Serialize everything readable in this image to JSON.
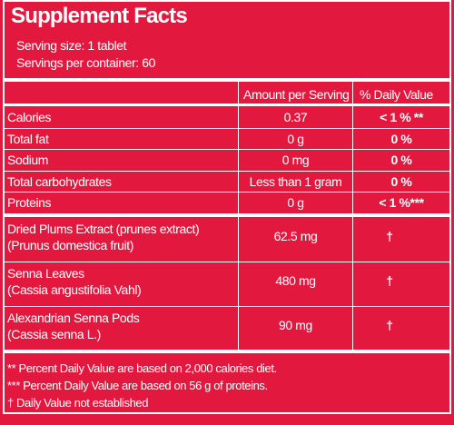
{
  "header": {
    "title": "Supplement Facts",
    "serving_size": "Serving size: 1 tablet",
    "servings": "Servings per container: 60"
  },
  "table": {
    "columns": [
      "Amount per Serving",
      "% Daily Value"
    ],
    "nutrients": [
      [
        "Calories",
        "0.37",
        "< 1 % **"
      ],
      [
        "Total fat",
        "0 g",
        "0 %"
      ],
      [
        "Sodium",
        "0 mg",
        "0 %"
      ],
      [
        "Total carbohydrates",
        "Less than 1 gram",
        "0 %"
      ],
      [
        "Proteins",
        "0 g",
        "< 1 %***"
      ]
    ],
    "ingredients": [
      {
        "name": "Dried Plums Extract (prunes extract)",
        "source": "(Prunus domestica fruit)",
        "amount": "62.5 mg",
        "dv": "†"
      },
      {
        "name": "Senna Leaves",
        "source": "(Cassia angustifolia Vahl)",
        "amount": "480 mg",
        "dv": "†"
      },
      {
        "name": "Alexandrian Senna Pods",
        "source": "(Cassia senna L.)",
        "amount": "90 mg",
        "dv": "†"
      }
    ]
  },
  "footnotes": [
    "**  Percent Daily Value are based on 2,000 calories diet.",
    "*** Percent Daily Value are based on 56 g of proteins.",
    "†  Daily Value not established"
  ]
}
